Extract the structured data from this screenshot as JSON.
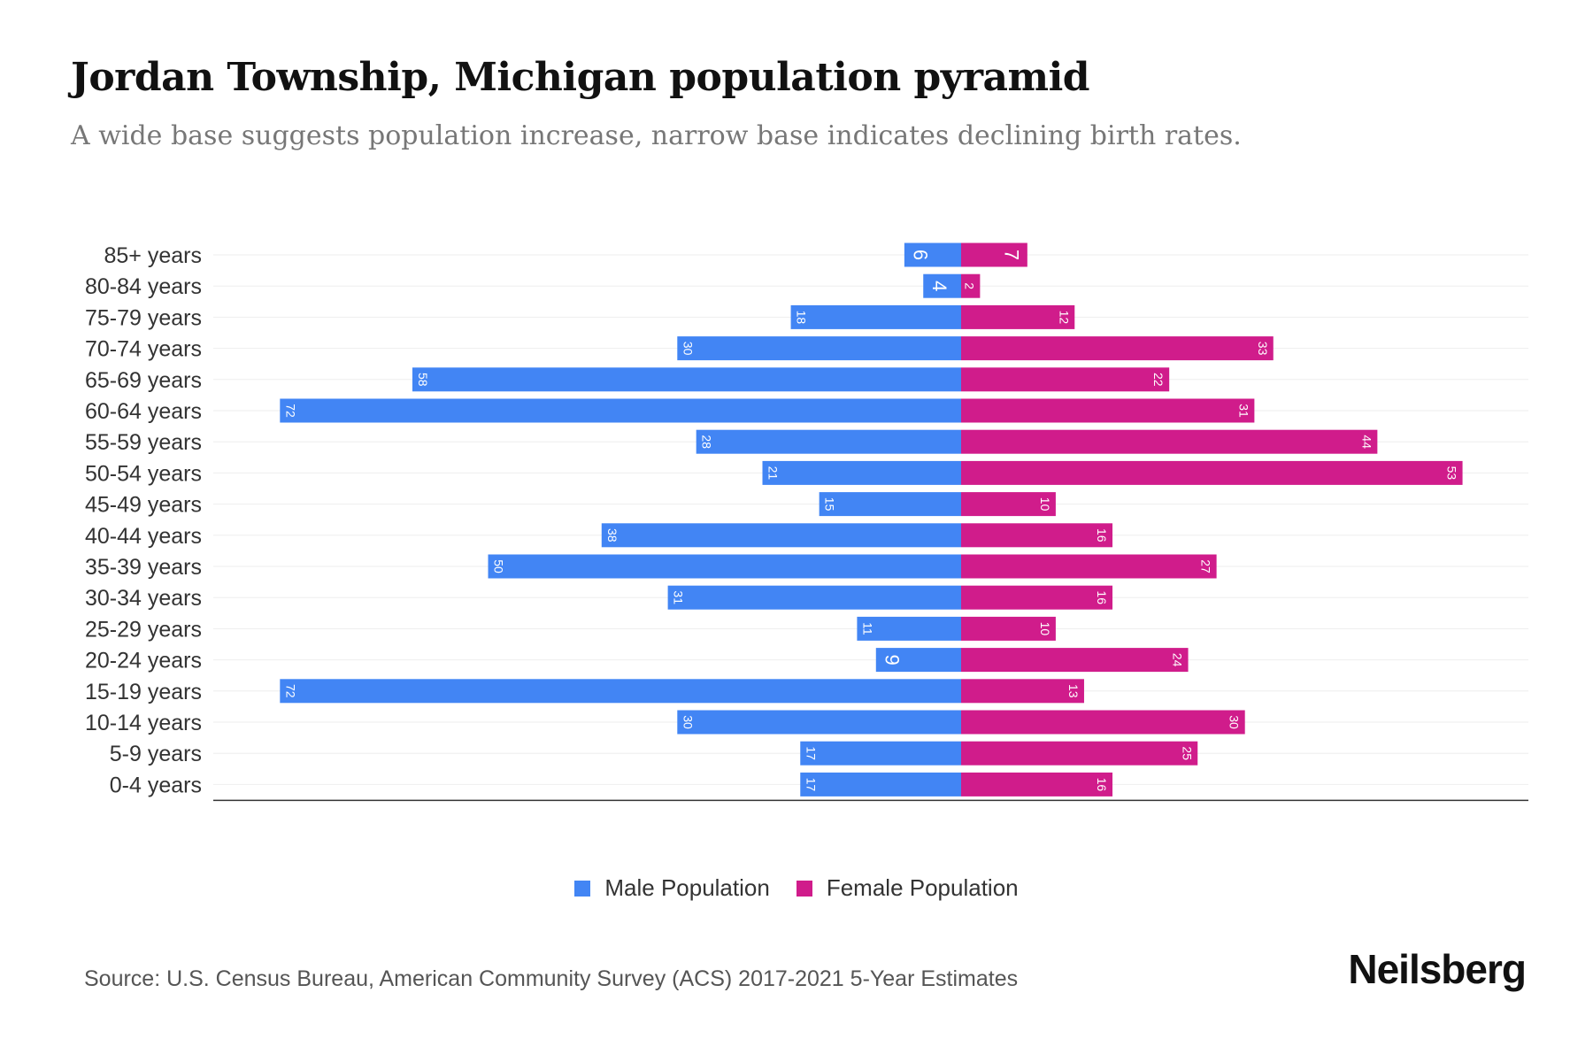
{
  "chart_data": {
    "type": "bar",
    "orientation": "horizontal-pyramid",
    "title": "Jordan Township, Michigan population pyramid",
    "subtitle": "A wide base suggests population increase, narrow base indicates declining birth rates.",
    "categories": [
      "85+ years",
      "80-84 years",
      "75-79 years",
      "70-74 years",
      "65-69 years",
      "60-64 years",
      "55-59 years",
      "50-54 years",
      "45-49 years",
      "40-44 years",
      "35-39 years",
      "30-34 years",
      "25-29 years",
      "20-24 years",
      "15-19 years",
      "10-14 years",
      "5-9 years",
      "0-4 years"
    ],
    "series": [
      {
        "name": "Male Population",
        "color": "#4285F4",
        "values": [
          6,
          4,
          18,
          30,
          58,
          72,
          28,
          21,
          15,
          38,
          50,
          31,
          11,
          9,
          72,
          30,
          17,
          17
        ]
      },
      {
        "name": "Female Population",
        "color": "#D01C8B",
        "values": [
          7,
          2,
          12,
          33,
          22,
          31,
          44,
          53,
          10,
          16,
          27,
          16,
          10,
          24,
          13,
          30,
          25,
          16
        ]
      }
    ],
    "xlim": [
      -78,
      60
    ],
    "legend_position": "bottom-center",
    "grid": true
  },
  "source": "Source: U.S. Census Bureau, American Community Survey (ACS) 2017-2021 5-Year Estimates",
  "logo": "Neilsberg"
}
